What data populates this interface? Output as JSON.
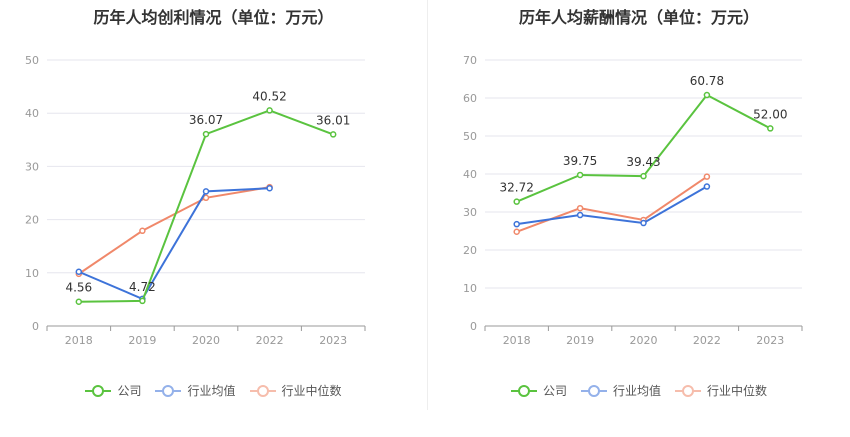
{
  "colors": {
    "company": "#5ac33f",
    "avg": "#3d73d9",
    "median": "#f0886a"
  },
  "chart_data": [
    {
      "type": "line",
      "title": "历年人均创利情况（单位：万元）",
      "xlabel": "",
      "ylabel": "",
      "categories": [
        "2018",
        "2019",
        "2020",
        "2022",
        "2023"
      ],
      "ylim": [
        0,
        50
      ],
      "yticks": [
        0,
        10,
        20,
        30,
        40,
        50
      ],
      "grid": true,
      "legend": "bottom",
      "series": [
        {
          "name": "公司",
          "color": "#5ac33f",
          "values": [
            4.56,
            4.72,
            36.07,
            40.52,
            36.01
          ],
          "labels": [
            "4.56",
            "4.72",
            "36.07",
            "40.52",
            "36.01"
          ]
        },
        {
          "name": "行业均值",
          "color": "#3d73d9",
          "values": [
            10.2,
            5.1,
            25.3,
            25.9,
            null
          ],
          "labels": []
        },
        {
          "name": "行业中位数",
          "color": "#f0886a",
          "values": [
            9.8,
            17.9,
            24.1,
            26.1,
            null
          ],
          "labels": []
        }
      ]
    },
    {
      "type": "line",
      "title": "历年人均薪酬情况（单位：万元）",
      "xlabel": "",
      "ylabel": "",
      "categories": [
        "2018",
        "2019",
        "2020",
        "2022",
        "2023"
      ],
      "ylim": [
        0,
        70
      ],
      "yticks": [
        0,
        10,
        20,
        30,
        40,
        50,
        60,
        70
      ],
      "grid": true,
      "legend": "bottom",
      "series": [
        {
          "name": "公司",
          "color": "#5ac33f",
          "values": [
            32.72,
            39.75,
            39.43,
            60.78,
            52.0
          ],
          "labels": [
            "32.72",
            "39.75",
            "39.43",
            "60.78",
            "52.00"
          ]
        },
        {
          "name": "行业均值",
          "color": "#3d73d9",
          "values": [
            26.8,
            29.2,
            27.1,
            36.7,
            null
          ],
          "labels": []
        },
        {
          "name": "行业中位数",
          "color": "#f0886a",
          "values": [
            24.8,
            31.0,
            27.9,
            39.3,
            null
          ],
          "labels": []
        }
      ]
    }
  ],
  "legend_items": [
    "公司",
    "行业均值",
    "行业中位数"
  ]
}
